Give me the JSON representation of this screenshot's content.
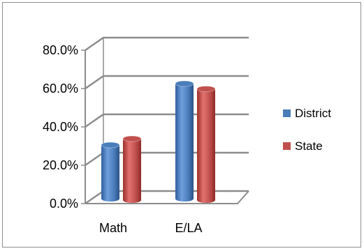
{
  "chart_data": {
    "type": "bar",
    "categories": [
      "Math",
      "E/LA"
    ],
    "series": [
      {
        "name": "District",
        "values": [
          0.28,
          0.6
        ],
        "color": "#4a7ebb"
      },
      {
        "name": "State",
        "values": [
          0.32,
          0.58
        ],
        "color": "#c0504d"
      }
    ],
    "ylim": [
      0,
      0.8
    ],
    "yticks": [
      "0.0%",
      "20.0%",
      "40.0%",
      "60.0%",
      "80.0%"
    ],
    "grid": true,
    "legend_position": "right",
    "style": "3d-cylinder"
  }
}
